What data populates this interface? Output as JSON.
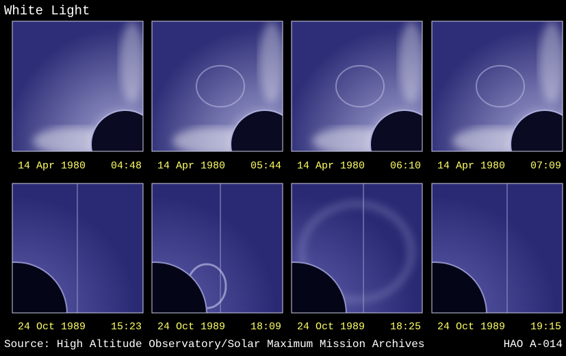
{
  "header": {
    "title": "White Light"
  },
  "panels": [
    {
      "date": "14 Apr 1980",
      "time": "04:48"
    },
    {
      "date": "14 Apr 1980",
      "time": "05:44"
    },
    {
      "date": "14 Apr 1980",
      "time": "06:10"
    },
    {
      "date": "14 Apr 1980",
      "time": "07:09"
    },
    {
      "date": "24 Oct 1989",
      "time": "15:23"
    },
    {
      "date": "24 Oct 1989",
      "time": "18:09"
    },
    {
      "date": "24 Oct 1989",
      "time": "18:25"
    },
    {
      "date": "24 Oct 1989",
      "time": "19:15"
    }
  ],
  "footer": {
    "source": "Source: High Altitude Observatory/Solar Maximum Mission Archives",
    "id": "HAO A-014"
  }
}
